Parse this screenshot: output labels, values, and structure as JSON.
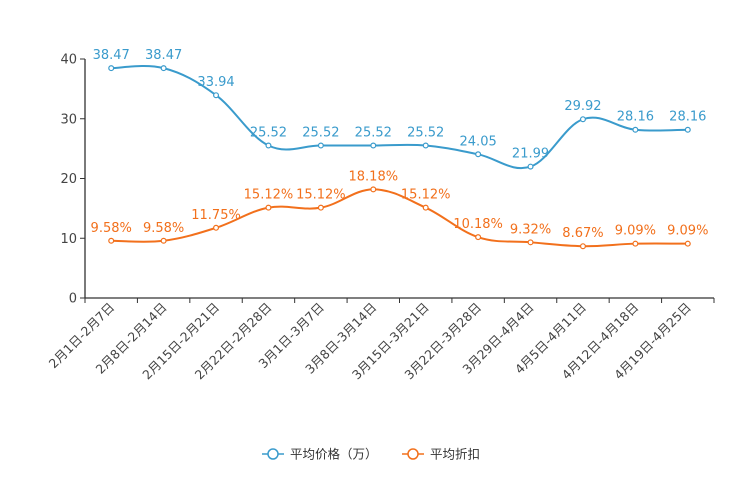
{
  "chart_data": {
    "type": "line",
    "categories": [
      "2月1日-2月7日",
      "2月8日-2月14日",
      "2月15日-2月21日",
      "2月22日-2月28日",
      "3月1日-3月7日",
      "3月8日-3月14日",
      "3月15日-3月21日",
      "3月22日-3月28日",
      "3月29日-4月4日",
      "4月5日-4月11日",
      "4月12日-4月18日",
      "4月19日-4月25日"
    ],
    "ylim": [
      0,
      40
    ],
    "yticks": [
      0,
      10,
      20,
      30,
      40
    ],
    "series": [
      {
        "name": "平均价格（万）",
        "color": "#3a9bcc",
        "values": [
          38.47,
          38.47,
          33.94,
          25.52,
          25.52,
          25.52,
          25.52,
          24.05,
          21.99,
          29.92,
          28.16,
          28.16
        ],
        "labels": [
          "38.47",
          "38.47",
          "33.94",
          "25.52",
          "25.52",
          "25.52",
          "25.52",
          "24.05",
          "21.99",
          "29.92",
          "28.16",
          "28.16"
        ]
      },
      {
        "name": "平均折扣",
        "color": "#f2701c",
        "values": [
          9.58,
          9.58,
          11.75,
          15.12,
          15.12,
          18.18,
          15.12,
          10.18,
          9.32,
          8.67,
          9.09,
          9.09
        ],
        "labels": [
          "9.58%",
          "9.58%",
          "11.75%",
          "15.12%",
          "15.12%",
          "18.18%",
          "15.12%",
          "10.18%",
          "9.32%",
          "8.67%",
          "9.09%",
          "9.09%"
        ]
      }
    ],
    "legend": "bottom-center",
    "grid": false
  }
}
